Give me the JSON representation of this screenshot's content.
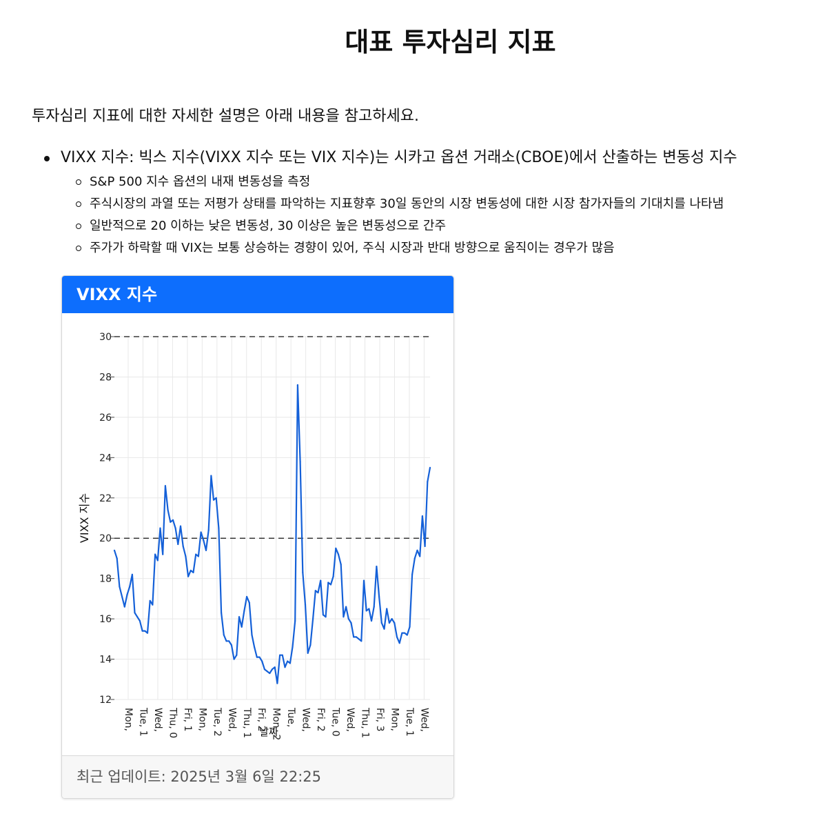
{
  "page": {
    "title": "대표 투자심리 지표",
    "intro": "투자심리 지표에 대한 자세한 설명은 아래 내용을 참고하세요."
  },
  "bullets": [
    {
      "text": "VIXX 지수: 빅스 지수(VIXX 지수 또는 VIX 지수)는 시카고 옵션 거래소(CBOE)에서 산출하는 변동성 지수",
      "sub": [
        "S&P 500 지수 옵션의 내재 변동성을 측정",
        "주식시장의 과열 또는 저평가 상태를 파악하는 지표향후 30일 동안의 시장 변동성에 대한 시장 참가자들의 기대치를 나타냄",
        "일반적으로 20 이하는 낮은 변동성, 30 이상은 높은 변동성으로 간주",
        "주가가 하락할 때 VIX는 보통 상승하는 경향이 있어, 주식 시장과 반대 방향으로 움직이는 경우가 많음"
      ]
    }
  ],
  "card": {
    "title": "VIXX 지수",
    "footer": "최근 업데이트: 2025년 3월 6일 22:25"
  },
  "colors": {
    "accent": "#0d6efd",
    "line": "#1460d8",
    "grid": "#e8e8e8"
  },
  "chart_data": {
    "type": "line",
    "title": "",
    "ylabel": "VIXX 지수",
    "xlabel": "날짜",
    "ylim": [
      12,
      30
    ],
    "yticks": [
      12,
      14,
      16,
      18,
      20,
      22,
      24,
      26,
      28,
      30
    ],
    "reference_lines": [
      20,
      30
    ],
    "grid": true,
    "xtick_labels": [
      "Mon, ",
      "Tue, 1",
      "Wed, ",
      "Thu, 0",
      "Fri, 1",
      "Mon, ",
      "Tue, 2",
      "Wed, ",
      "Thu, 1",
      "Fri, 2",
      "Mon, 2",
      "Tue, ",
      "Wed, ",
      "Fri, 2",
      "Tue, 0",
      "Wed, ",
      "Thu, 1",
      "Fri, 3",
      "Mon, ",
      "Tue, 1",
      "Wed, "
    ],
    "series": [
      {
        "name": "",
        "values": [
          19.4,
          19.0,
          17.6,
          17.1,
          16.6,
          17.2,
          17.6,
          18.2,
          16.3,
          16.1,
          15.9,
          15.4,
          15.4,
          15.3,
          16.9,
          16.7,
          19.2,
          18.9,
          20.5,
          19.2,
          22.6,
          21.4,
          20.8,
          20.9,
          20.5,
          19.7,
          20.6,
          19.6,
          19.1,
          18.1,
          18.4,
          18.3,
          19.2,
          19.1,
          20.3,
          19.9,
          19.4,
          20.4,
          23.1,
          21.9,
          22.0,
          20.5,
          16.3,
          15.2,
          14.9,
          14.9,
          14.7,
          14.0,
          14.2,
          16.1,
          15.6,
          16.4,
          17.1,
          16.8,
          15.2,
          14.6,
          14.1,
          14.1,
          13.9,
          13.5,
          13.4,
          13.3,
          13.5,
          13.6,
          12.8,
          14.2,
          14.2,
          13.6,
          13.9,
          13.8,
          14.6,
          15.9,
          27.6,
          23.8,
          18.3,
          16.7,
          14.3,
          14.7,
          16.0,
          17.4,
          17.3,
          17.9,
          16.2,
          16.1,
          17.8,
          17.7,
          18.1,
          19.5,
          19.2,
          18.7,
          16.1,
          16.6,
          16.0,
          15.8,
          15.1,
          15.1,
          15.0,
          14.9,
          17.9,
          16.4,
          16.5,
          15.9,
          16.6,
          18.6,
          17.1,
          15.8,
          15.5,
          16.5,
          15.8,
          16.0,
          15.8,
          15.1,
          14.8,
          15.3,
          15.3,
          15.2,
          15.6,
          18.2,
          19.0,
          19.4,
          19.1,
          21.1,
          19.6,
          22.8,
          23.5
        ]
      }
    ]
  }
}
